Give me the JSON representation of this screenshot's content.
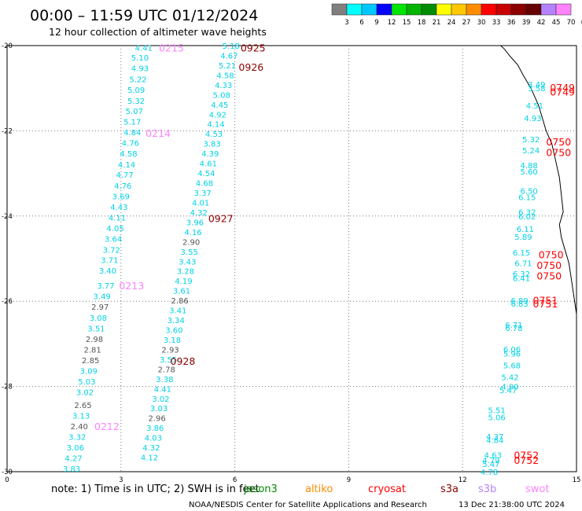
{
  "header": {
    "title": "00:00 – 11:59 UTC 01/12/2024",
    "subtitle": "12 hour collection of altimeter wave heights"
  },
  "colorbar": {
    "labels": [
      "3",
      "6",
      "9",
      "12",
      "15",
      "18",
      "21",
      "24",
      "27",
      "30",
      "33",
      "36",
      "39",
      "42",
      "45",
      "70",
      "(ft)"
    ],
    "colors": [
      "#7f7f7f",
      "#00ffff",
      "#00c8ff",
      "#0000ff",
      "#00e600",
      "#00b400",
      "#008c00",
      "#ffff00",
      "#ffc800",
      "#ff8c00",
      "#ff0000",
      "#c80000",
      "#8c0000",
      "#660000",
      "#b482ff",
      "#ff82ff"
    ]
  },
  "footer": {
    "note_text": "note:  1) Time is in UTC; 2) SWH is in feet",
    "credit": "NOAA/NESDIS Center for Satellite Applications and Research",
    "timestamp": "13 Dec 21:38:00 UTC 2024"
  },
  "satellites": [
    {
      "name": "jason3",
      "color": "#008c00"
    },
    {
      "name": "altiko",
      "color": "#ff8c00"
    },
    {
      "name": "cryosat",
      "color": "#ff0000"
    },
    {
      "name": "s3a",
      "color": "#8c0000"
    },
    {
      "name": "s3b",
      "color": "#b482ff"
    },
    {
      "name": "swot",
      "color": "#ff82ff"
    }
  ],
  "chart_data": {
    "type": "scatter",
    "xlim": [
      0,
      15
    ],
    "ylim": [
      -30,
      -20
    ],
    "xticks": [
      "0",
      "3",
      "6",
      "9",
      "12",
      "15"
    ],
    "yticks": [
      "-20",
      "-22",
      "-24",
      "-26",
      "-28",
      "-30"
    ],
    "grid": true,
    "value_colors": {
      "gray": "#555555",
      "cyan": "#00d2e6"
    },
    "heights": [
      {
        "x": 3.6,
        "y": -20.05,
        "v": "4.41",
        "c": "cyan"
      },
      {
        "x": 3.5,
        "y": -20.28,
        "v": "5.10",
        "c": "cyan"
      },
      {
        "x": 3.5,
        "y": -20.53,
        "v": "4.93",
        "c": "cyan"
      },
      {
        "x": 3.45,
        "y": -20.78,
        "v": "5.22",
        "c": "cyan"
      },
      {
        "x": 3.4,
        "y": -21.03,
        "v": "5.09",
        "c": "cyan"
      },
      {
        "x": 3.4,
        "y": -21.29,
        "v": "5.32",
        "c": "cyan"
      },
      {
        "x": 3.35,
        "y": -21.53,
        "v": "5.07",
        "c": "cyan"
      },
      {
        "x": 3.3,
        "y": -21.78,
        "v": "5.17",
        "c": "cyan"
      },
      {
        "x": 3.3,
        "y": -22.03,
        "v": "4.84",
        "c": "cyan"
      },
      {
        "x": 3.25,
        "y": -22.28,
        "v": "4.76",
        "c": "cyan"
      },
      {
        "x": 3.2,
        "y": -22.53,
        "v": "4.58",
        "c": "cyan"
      },
      {
        "x": 3.15,
        "y": -22.79,
        "v": "4.14",
        "c": "cyan"
      },
      {
        "x": 3.1,
        "y": -23.03,
        "v": "4.77",
        "c": "cyan"
      },
      {
        "x": 3.05,
        "y": -23.28,
        "v": "4.76",
        "c": "cyan"
      },
      {
        "x": 3.0,
        "y": -23.53,
        "v": "3.69",
        "c": "cyan"
      },
      {
        "x": 2.95,
        "y": -23.78,
        "v": "4.43",
        "c": "cyan"
      },
      {
        "x": 2.9,
        "y": -24.03,
        "v": "4.11",
        "c": "cyan"
      },
      {
        "x": 2.85,
        "y": -24.28,
        "v": "4.05",
        "c": "cyan"
      },
      {
        "x": 2.8,
        "y": -24.53,
        "v": "3.64",
        "c": "cyan"
      },
      {
        "x": 2.75,
        "y": -24.79,
        "v": "3.72",
        "c": "cyan"
      },
      {
        "x": 2.7,
        "y": -25.03,
        "v": "3.71",
        "c": "cyan"
      },
      {
        "x": 2.65,
        "y": -25.28,
        "v": "3.40",
        "c": "cyan"
      },
      {
        "x": 2.6,
        "y": -25.63,
        "v": "3.77",
        "c": "cyan"
      },
      {
        "x": 2.5,
        "y": -25.88,
        "v": "3.49",
        "c": "cyan"
      },
      {
        "x": 2.45,
        "y": -26.13,
        "v": "2.97",
        "c": "gray"
      },
      {
        "x": 2.4,
        "y": -26.38,
        "v": "3.08",
        "c": "cyan"
      },
      {
        "x": 2.35,
        "y": -26.63,
        "v": "3.51",
        "c": "cyan"
      },
      {
        "x": 2.3,
        "y": -26.88,
        "v": "2.98",
        "c": "gray"
      },
      {
        "x": 2.25,
        "y": -27.13,
        "v": "2.81",
        "c": "gray"
      },
      {
        "x": 2.2,
        "y": -27.38,
        "v": "2.85",
        "c": "gray"
      },
      {
        "x": 2.15,
        "y": -27.63,
        "v": "3.09",
        "c": "cyan"
      },
      {
        "x": 2.1,
        "y": -27.88,
        "v": "5.03",
        "c": "cyan"
      },
      {
        "x": 2.05,
        "y": -28.13,
        "v": "3.02",
        "c": "cyan"
      },
      {
        "x": 2.0,
        "y": -28.43,
        "v": "2.65",
        "c": "gray"
      },
      {
        "x": 1.95,
        "y": -28.68,
        "v": "3.13",
        "c": "cyan"
      },
      {
        "x": 1.9,
        "y": -28.93,
        "v": "2.40",
        "c": "gray"
      },
      {
        "x": 1.85,
        "y": -29.18,
        "v": "3.32",
        "c": "cyan"
      },
      {
        "x": 1.8,
        "y": -29.43,
        "v": "3.06",
        "c": "cyan"
      },
      {
        "x": 1.75,
        "y": -29.68,
        "v": "4.27",
        "c": "cyan"
      },
      {
        "x": 1.7,
        "y": -29.93,
        "v": "3.83",
        "c": "cyan"
      },
      {
        "x": 5.9,
        "y": -20.0,
        "v": "5.18",
        "c": "cyan"
      },
      {
        "x": 5.85,
        "y": -20.23,
        "v": "4.67",
        "c": "cyan"
      },
      {
        "x": 5.8,
        "y": -20.46,
        "v": "5.21",
        "c": "cyan"
      },
      {
        "x": 5.75,
        "y": -20.69,
        "v": "4.58",
        "c": "cyan"
      },
      {
        "x": 5.7,
        "y": -20.92,
        "v": "4.33",
        "c": "cyan"
      },
      {
        "x": 5.65,
        "y": -21.15,
        "v": "5.08",
        "c": "cyan"
      },
      {
        "x": 5.6,
        "y": -21.38,
        "v": "4.45",
        "c": "cyan"
      },
      {
        "x": 5.55,
        "y": -21.61,
        "v": "4.92",
        "c": "cyan"
      },
      {
        "x": 5.5,
        "y": -21.84,
        "v": "4.14",
        "c": "cyan"
      },
      {
        "x": 5.45,
        "y": -22.07,
        "v": "4.53",
        "c": "cyan"
      },
      {
        "x": 5.4,
        "y": -22.3,
        "v": "3.83",
        "c": "cyan"
      },
      {
        "x": 5.35,
        "y": -22.53,
        "v": "4.39",
        "c": "cyan"
      },
      {
        "x": 5.3,
        "y": -22.76,
        "v": "4.61",
        "c": "cyan"
      },
      {
        "x": 5.25,
        "y": -22.99,
        "v": "4.54",
        "c": "cyan"
      },
      {
        "x": 5.2,
        "y": -23.22,
        "v": "4.68",
        "c": "cyan"
      },
      {
        "x": 5.15,
        "y": -23.45,
        "v": "3.37",
        "c": "cyan"
      },
      {
        "x": 5.1,
        "y": -23.68,
        "v": "4.01",
        "c": "cyan"
      },
      {
        "x": 5.05,
        "y": -23.91,
        "v": "4.32",
        "c": "cyan"
      },
      {
        "x": 4.95,
        "y": -24.14,
        "v": "3.96",
        "c": "cyan"
      },
      {
        "x": 4.9,
        "y": -24.37,
        "v": "4.16",
        "c": "cyan"
      },
      {
        "x": 4.85,
        "y": -24.6,
        "v": "2.90",
        "c": "gray"
      },
      {
        "x": 4.8,
        "y": -24.83,
        "v": "3.55",
        "c": "cyan"
      },
      {
        "x": 4.75,
        "y": -25.06,
        "v": "3.43",
        "c": "cyan"
      },
      {
        "x": 4.7,
        "y": -25.29,
        "v": "3.28",
        "c": "cyan"
      },
      {
        "x": 4.65,
        "y": -25.52,
        "v": "4.19",
        "c": "cyan"
      },
      {
        "x": 4.6,
        "y": -25.75,
        "v": "3.61",
        "c": "cyan"
      },
      {
        "x": 4.55,
        "y": -25.98,
        "v": "2.86",
        "c": "gray"
      },
      {
        "x": 4.5,
        "y": -26.21,
        "v": "3.41",
        "c": "cyan"
      },
      {
        "x": 4.45,
        "y": -26.44,
        "v": "3.34",
        "c": "cyan"
      },
      {
        "x": 4.4,
        "y": -26.67,
        "v": "3.60",
        "c": "cyan"
      },
      {
        "x": 4.35,
        "y": -26.9,
        "v": "3.18",
        "c": "cyan"
      },
      {
        "x": 4.3,
        "y": -27.13,
        "v": "2.93",
        "c": "gray"
      },
      {
        "x": 4.25,
        "y": -27.36,
        "v": "3.55",
        "c": "cyan"
      },
      {
        "x": 4.2,
        "y": -27.59,
        "v": "2.78",
        "c": "gray"
      },
      {
        "x": 4.15,
        "y": -27.82,
        "v": "3.38",
        "c": "cyan"
      },
      {
        "x": 4.1,
        "y": -28.05,
        "v": "4.41",
        "c": "cyan"
      },
      {
        "x": 4.05,
        "y": -28.28,
        "v": "3.02",
        "c": "cyan"
      },
      {
        "x": 4.0,
        "y": -28.51,
        "v": "3.03",
        "c": "cyan"
      },
      {
        "x": 3.95,
        "y": -28.74,
        "v": "2.96",
        "c": "gray"
      },
      {
        "x": 3.9,
        "y": -28.97,
        "v": "3.86",
        "c": "cyan"
      },
      {
        "x": 3.85,
        "y": -29.2,
        "v": "4.03",
        "c": "cyan"
      },
      {
        "x": 3.8,
        "y": -29.43,
        "v": "4.32",
        "c": "cyan"
      },
      {
        "x": 3.75,
        "y": -29.66,
        "v": "4.12",
        "c": "cyan"
      },
      {
        "x": 13.95,
        "y": -20.9,
        "v": "3.49",
        "c": "cyan"
      },
      {
        "x": 13.95,
        "y": -21.0,
        "v": "3.58",
        "c": "cyan"
      },
      {
        "x": 13.9,
        "y": -21.4,
        "v": "4.51",
        "c": "cyan"
      },
      {
        "x": 13.85,
        "y": -21.7,
        "v": "4.93",
        "c": "cyan"
      },
      {
        "x": 13.8,
        "y": -22.2,
        "v": "5.32",
        "c": "cyan"
      },
      {
        "x": 13.8,
        "y": -22.45,
        "v": "5.24",
        "c": "cyan"
      },
      {
        "x": 13.75,
        "y": -22.8,
        "v": "4.88",
        "c": "cyan"
      },
      {
        "x": 13.75,
        "y": -22.95,
        "v": "5.60",
        "c": "cyan"
      },
      {
        "x": 13.75,
        "y": -23.4,
        "v": "6.50",
        "c": "cyan"
      },
      {
        "x": 13.7,
        "y": -23.55,
        "v": "6.15",
        "c": "cyan"
      },
      {
        "x": 13.7,
        "y": -23.9,
        "v": "6.32",
        "c": "cyan"
      },
      {
        "x": 13.7,
        "y": -24.0,
        "v": "6.02",
        "c": "cyan"
      },
      {
        "x": 13.65,
        "y": -24.3,
        "v": "6.11",
        "c": "cyan"
      },
      {
        "x": 13.6,
        "y": -24.48,
        "v": "5.89",
        "c": "cyan"
      },
      {
        "x": 13.55,
        "y": -24.85,
        "v": "6.15",
        "c": "cyan"
      },
      {
        "x": 13.6,
        "y": -25.1,
        "v": "6.71",
        "c": "cyan"
      },
      {
        "x": 13.55,
        "y": -25.35,
        "v": "6.32",
        "c": "cyan"
      },
      {
        "x": 13.55,
        "y": -25.45,
        "v": "6.41",
        "c": "cyan"
      },
      {
        "x": 13.5,
        "y": -25.98,
        "v": "6.89",
        "c": "cyan"
      },
      {
        "x": 13.5,
        "y": -26.05,
        "v": "6.83",
        "c": "cyan"
      },
      {
        "x": 13.35,
        "y": -26.55,
        "v": "6.71",
        "c": "cyan"
      },
      {
        "x": 13.35,
        "y": -26.62,
        "v": "6.78",
        "c": "cyan"
      },
      {
        "x": 13.3,
        "y": -27.12,
        "v": "6.06",
        "c": "cyan"
      },
      {
        "x": 13.3,
        "y": -27.22,
        "v": "5.96",
        "c": "cyan"
      },
      {
        "x": 13.3,
        "y": -27.5,
        "v": "5.68",
        "c": "cyan"
      },
      {
        "x": 13.25,
        "y": -27.78,
        "v": "5.42",
        "c": "cyan"
      },
      {
        "x": 13.25,
        "y": -28.0,
        "v": "4.90",
        "c": "cyan"
      },
      {
        "x": 13.2,
        "y": -28.08,
        "v": "5.47",
        "c": "cyan"
      },
      {
        "x": 12.9,
        "y": -28.55,
        "v": "5.51",
        "c": "cyan"
      },
      {
        "x": 12.9,
        "y": -28.72,
        "v": "5.06",
        "c": "cyan"
      },
      {
        "x": 12.85,
        "y": -29.17,
        "v": "4.37",
        "c": "cyan"
      },
      {
        "x": 12.85,
        "y": -29.25,
        "v": "4.84",
        "c": "cyan"
      },
      {
        "x": 12.8,
        "y": -29.6,
        "v": "4.63",
        "c": "cyan"
      },
      {
        "x": 12.75,
        "y": -29.72,
        "v": "4.79",
        "c": "cyan"
      },
      {
        "x": 12.75,
        "y": -29.82,
        "v": "5.47",
        "c": "cyan"
      },
      {
        "x": 12.7,
        "y": -30.0,
        "v": "4.78",
        "c": "cyan"
      }
    ],
    "time_labels": [
      {
        "x": 4.0,
        "y": -20.05,
        "t": "0215",
        "color": "#ff82ff"
      },
      {
        "x": 3.65,
        "y": -22.05,
        "t": "0214",
        "color": "#ff82ff"
      },
      {
        "x": 2.95,
        "y": -25.63,
        "t": "0213",
        "color": "#ff82ff"
      },
      {
        "x": 2.3,
        "y": -28.93,
        "t": "0212",
        "color": "#ff82ff"
      },
      {
        "x": 6.15,
        "y": -20.05,
        "t": "0925",
        "color": "#8c0000"
      },
      {
        "x": 6.1,
        "y": -20.5,
        "t": "0926",
        "color": "#8c0000"
      },
      {
        "x": 5.3,
        "y": -24.05,
        "t": "0927",
        "color": "#8c0000"
      },
      {
        "x": 4.3,
        "y": -27.4,
        "t": "0928",
        "color": "#8c0000"
      },
      {
        "x": 14.3,
        "y": -20.98,
        "t": "0749",
        "color": "#ff0000"
      },
      {
        "x": 14.3,
        "y": -21.08,
        "t": "0749",
        "color": "#ff0000"
      },
      {
        "x": 14.2,
        "y": -22.25,
        "t": "0750",
        "color": "#ff0000"
      },
      {
        "x": 14.2,
        "y": -22.5,
        "t": "0750",
        "color": "#ff0000"
      },
      {
        "x": 14.0,
        "y": -24.9,
        "t": "0750",
        "color": "#ff0000"
      },
      {
        "x": 13.95,
        "y": -25.15,
        "t": "0750",
        "color": "#ff0000"
      },
      {
        "x": 13.95,
        "y": -25.4,
        "t": "0750",
        "color": "#ff0000"
      },
      {
        "x": 13.85,
        "y": -25.97,
        "t": "0751",
        "color": "#ff0000"
      },
      {
        "x": 13.85,
        "y": -26.05,
        "t": "0751",
        "color": "#ff0000"
      },
      {
        "x": 13.35,
        "y": -29.6,
        "t": "0752",
        "color": "#ff0000"
      },
      {
        "x": 13.35,
        "y": -29.72,
        "t": "0752",
        "color": "#ff0000"
      }
    ],
    "coastline": [
      [
        13.0,
        -20.0
      ],
      [
        13.1,
        -20.08
      ],
      [
        13.25,
        -20.25
      ],
      [
        13.45,
        -20.45
      ],
      [
        13.6,
        -20.7
      ],
      [
        13.8,
        -21.0
      ],
      [
        14.0,
        -21.4
      ],
      [
        14.1,
        -21.7
      ],
      [
        14.2,
        -22.0
      ],
      [
        14.35,
        -22.3
      ],
      [
        14.45,
        -22.7
      ],
      [
        14.55,
        -23.1
      ],
      [
        14.6,
        -23.5
      ],
      [
        14.65,
        -23.9
      ],
      [
        14.55,
        -24.2
      ],
      [
        14.6,
        -24.5
      ],
      [
        14.7,
        -24.8
      ],
      [
        14.8,
        -25.1
      ],
      [
        14.85,
        -25.4
      ],
      [
        14.9,
        -25.7
      ],
      [
        14.95,
        -26.0
      ],
      [
        15.0,
        -26.3
      ]
    ]
  }
}
